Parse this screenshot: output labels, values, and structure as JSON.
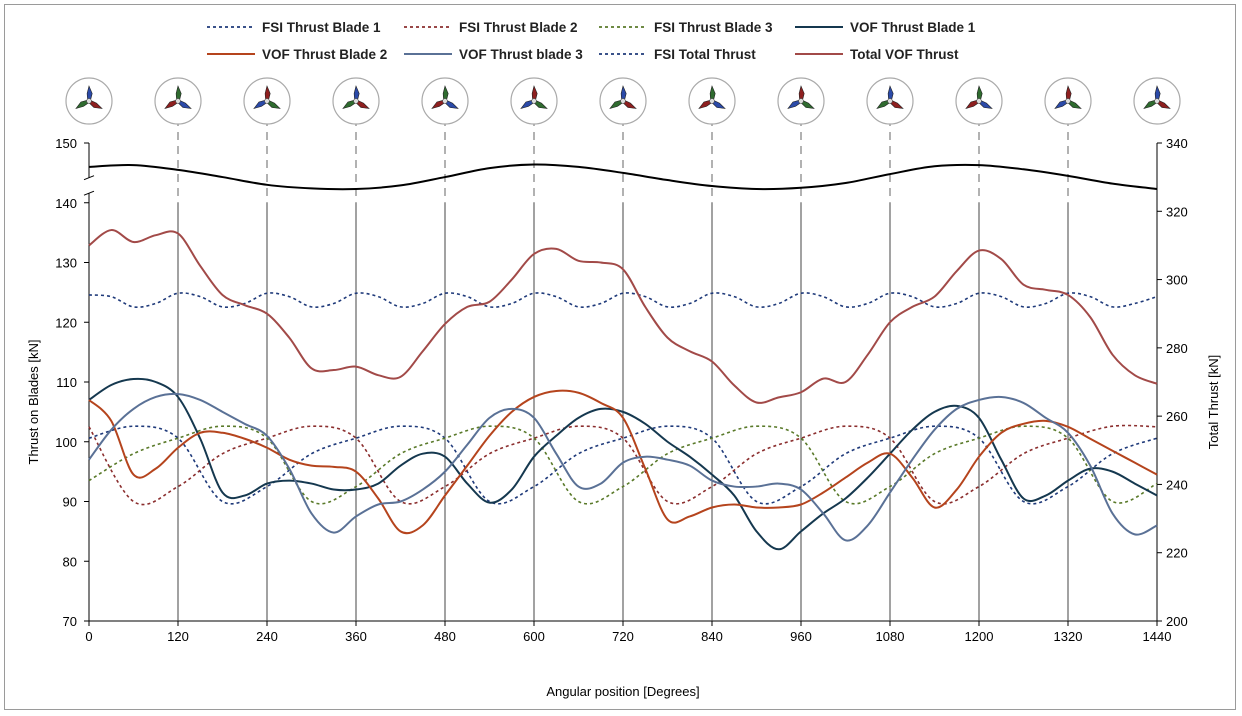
{
  "chart_data": {
    "type": "line",
    "xlabel": "Angular position [Degrees]",
    "ylabel": "Thrust on Blades [kN]",
    "y2label": "Total Thrust [kN]",
    "xlim": [
      0,
      1440
    ],
    "ylim": [
      70,
      150
    ],
    "y2lim": [
      200,
      340
    ],
    "x_ticks": [
      "0",
      "120",
      "240",
      "360",
      "480",
      "600",
      "720",
      "840",
      "960",
      "1080",
      "1200",
      "1320",
      "1440"
    ],
    "y_ticks": [
      "70",
      "80",
      "90",
      "100",
      "110",
      "120",
      "130",
      "140",
      "150"
    ],
    "y2_ticks": [
      "200",
      "220",
      "240",
      "260",
      "280",
      "300",
      "320",
      "340"
    ],
    "grid": "vertical lines every 120 degrees",
    "legend_position": "top",
    "axis_break": "between 140 and 150 on the left axis",
    "rotor_icon_angles": [
      0,
      120,
      240,
      360,
      480,
      600,
      720,
      840,
      960,
      1080,
      1200,
      1320,
      1440
    ],
    "series": [
      {
        "name": "FSI Thrust Blade 1",
        "axis": "left",
        "style": "dashed",
        "color": "#1f3a7a",
        "x": [
          0,
          60,
          120,
          180,
          240,
          300,
          360,
          420,
          480,
          540,
          600,
          660,
          720,
          780,
          840,
          900,
          960,
          1020,
          1080,
          1140,
          1200,
          1260,
          1320,
          1380,
          1440
        ],
        "y": [
          100.6,
          102.6,
          100.6,
          90.0,
          92.5,
          98.0,
          100.6,
          102.6,
          100.6,
          90.0,
          92.5,
          98.0,
          100.6,
          102.6,
          100.6,
          90.0,
          92.5,
          98.0,
          100.6,
          102.6,
          100.6,
          90.0,
          92.5,
          98.0,
          100.6
        ]
      },
      {
        "name": "FSI Thrust Blade 2",
        "axis": "left",
        "style": "dashed",
        "color": "#8b2e2e",
        "x": [
          0,
          60,
          120,
          180,
          240,
          300,
          360,
          420,
          480,
          540,
          600,
          660,
          720,
          780,
          840,
          900,
          960,
          1020,
          1080,
          1140,
          1200,
          1260,
          1320,
          1380,
          1440
        ],
        "y": [
          102.5,
          90.0,
          92.5,
          98.0,
          100.6,
          102.6,
          100.6,
          90.0,
          92.5,
          98.0,
          100.6,
          102.6,
          100.6,
          90.0,
          92.5,
          98.0,
          100.6,
          102.6,
          100.6,
          90.0,
          92.5,
          98.0,
          100.6,
          102.6,
          102.5
        ]
      },
      {
        "name": "FSI Thrust Blade 3",
        "axis": "left",
        "style": "dashed",
        "color": "#5a7a2a",
        "x": [
          0,
          60,
          120,
          180,
          240,
          300,
          360,
          420,
          480,
          540,
          600,
          660,
          720,
          780,
          840,
          900,
          960,
          1020,
          1080,
          1140,
          1200,
          1260,
          1320,
          1380,
          1440
        ],
        "y": [
          93.5,
          98.0,
          100.6,
          102.6,
          100.6,
          90.0,
          92.5,
          98.0,
          100.6,
          102.6,
          100.6,
          90.0,
          92.5,
          98.0,
          100.6,
          102.6,
          100.6,
          90.0,
          92.5,
          98.0,
          100.6,
          102.6,
          100.6,
          90.0,
          93.0
        ]
      },
      {
        "name": "VOF Thrust Blade 1",
        "axis": "left",
        "style": "solid",
        "color": "#15384f",
        "x": [
          0,
          30,
          60,
          90,
          120,
          150,
          180,
          210,
          240,
          270,
          300,
          330,
          360,
          390,
          420,
          450,
          480,
          510,
          540,
          570,
          600,
          630,
          660,
          690,
          720,
          750,
          780,
          810,
          840,
          870,
          900,
          930,
          960,
          990,
          1020,
          1050,
          1080,
          1110,
          1140,
          1170,
          1200,
          1230,
          1260,
          1290,
          1320,
          1350,
          1380,
          1410,
          1440
        ],
        "y": [
          107.0,
          109.5,
          110.5,
          110.0,
          107.5,
          100.5,
          91.5,
          91.0,
          93.0,
          93.5,
          93.0,
          92.0,
          92.0,
          93.0,
          96.0,
          98.0,
          97.5,
          93.0,
          89.8,
          92.0,
          97.5,
          101.0,
          104.0,
          105.5,
          105.0,
          103.0,
          100.0,
          97.5,
          94.5,
          91.0,
          85.0,
          82.0,
          85.0,
          88.0,
          90.5,
          94.0,
          98.0,
          102.0,
          105.0,
          106.0,
          104.0,
          97.0,
          90.5,
          91.0,
          93.5,
          95.5,
          95.0,
          93.0,
          91.0
        ]
      },
      {
        "name": "VOF Thrust Blade 2",
        "axis": "left",
        "style": "solid",
        "color": "#b5441d",
        "x": [
          0,
          30,
          60,
          90,
          120,
          150,
          180,
          210,
          240,
          270,
          300,
          330,
          360,
          390,
          420,
          450,
          480,
          510,
          540,
          570,
          600,
          630,
          660,
          690,
          720,
          750,
          780,
          810,
          840,
          870,
          900,
          930,
          960,
          990,
          1020,
          1050,
          1080,
          1110,
          1140,
          1170,
          1200,
          1230,
          1260,
          1290,
          1320,
          1350,
          1380,
          1410,
          1440
        ],
        "y": [
          107.0,
          103.5,
          94.5,
          95.5,
          99.0,
          101.5,
          101.5,
          100.5,
          99.0,
          97.0,
          96.0,
          95.8,
          95.0,
          90.5,
          85.0,
          86.0,
          91.0,
          96.0,
          101.0,
          105.0,
          107.5,
          108.5,
          108.2,
          106.5,
          104.0,
          95.5,
          87.0,
          87.5,
          89.0,
          89.5,
          89.0,
          89.0,
          89.5,
          91.5,
          94.0,
          96.5,
          98.0,
          94.0,
          89.0,
          92.0,
          97.5,
          101.5,
          103.0,
          103.5,
          102.5,
          100.5,
          98.5,
          96.5,
          94.5
        ]
      },
      {
        "name": "VOF Thrust blade 3",
        "axis": "left",
        "style": "solid",
        "color": "#5a7196",
        "x": [
          0,
          30,
          60,
          90,
          120,
          150,
          180,
          210,
          240,
          270,
          300,
          330,
          360,
          390,
          420,
          450,
          480,
          510,
          540,
          570,
          600,
          630,
          660,
          690,
          720,
          750,
          780,
          810,
          840,
          870,
          900,
          930,
          960,
          990,
          1020,
          1050,
          1080,
          1110,
          1140,
          1170,
          1200,
          1230,
          1260,
          1290,
          1320,
          1350,
          1380,
          1410,
          1440
        ],
        "y": [
          97.0,
          102.0,
          105.5,
          107.5,
          108.0,
          107.0,
          105.0,
          103.0,
          101.0,
          95.5,
          88.0,
          84.8,
          87.5,
          89.5,
          90.0,
          92.0,
          95.0,
          99.5,
          104.0,
          105.5,
          104.0,
          98.0,
          92.5,
          93.0,
          96.5,
          97.5,
          97.0,
          96.0,
          93.5,
          92.5,
          92.5,
          93.0,
          92.0,
          88.0,
          83.5,
          86.0,
          91.5,
          97.0,
          102.0,
          105.5,
          107.0,
          107.5,
          106.5,
          104.0,
          101.5,
          96.0,
          88.0,
          84.5,
          86.0
        ]
      },
      {
        "name": "FSI Total Thrust",
        "axis": "right",
        "style": "solid",
        "color": "#000000",
        "x": [
          0,
          60,
          120,
          180,
          240,
          300,
          360,
          420,
          480,
          540,
          600,
          660,
          720,
          780,
          840,
          900,
          960,
          1020,
          1080,
          1140,
          1200,
          1260,
          1320,
          1380,
          1440
        ],
        "y": [
          146.0,
          146.3,
          145.5,
          144.3,
          143.0,
          142.4,
          142.3,
          142.9,
          144.3,
          145.8,
          146.4,
          146.0,
          145.0,
          143.8,
          142.8,
          142.3,
          142.5,
          143.3,
          144.8,
          146.1,
          146.3,
          145.6,
          144.5,
          143.2,
          142.3
        ]
      },
      {
        "name": "FSI Total Thrust",
        "axis": "right",
        "style": "dashed",
        "color": "#1f3a7a",
        "x": [
          0,
          30,
          60,
          90,
          120,
          150,
          180,
          210,
          240,
          270,
          300,
          330,
          360,
          390,
          420,
          450,
          480,
          510,
          540,
          570,
          600,
          630,
          660,
          690,
          720,
          750,
          780,
          810,
          840,
          870,
          900,
          930,
          960,
          990,
          1020,
          1050,
          1080,
          1110,
          1140,
          1170,
          1200,
          1230,
          1260,
          1290,
          1320,
          1350,
          1380,
          1410,
          1440
        ],
        "y": [
          295.5,
          295.0,
          292.0,
          293.0,
          296.0,
          295.0,
          292.0,
          293.0,
          296.0,
          295.0,
          292.0,
          293.0,
          296.0,
          295.0,
          292.0,
          293.0,
          296.0,
          295.0,
          292.0,
          293.0,
          296.0,
          295.0,
          292.0,
          293.0,
          296.0,
          295.0,
          292.0,
          293.0,
          296.0,
          295.0,
          292.0,
          293.0,
          296.0,
          295.0,
          292.0,
          293.0,
          296.0,
          295.0,
          292.0,
          293.0,
          296.0,
          295.0,
          292.0,
          293.0,
          296.0,
          295.0,
          292.0,
          293.0,
          295.0
        ]
      },
      {
        "name": "Total VOF Thrust",
        "axis": "right",
        "style": "solid",
        "color": "#a24a48",
        "x": [
          0,
          30,
          60,
          90,
          120,
          150,
          180,
          210,
          240,
          270,
          300,
          330,
          360,
          390,
          420,
          450,
          480,
          510,
          540,
          570,
          600,
          630,
          660,
          690,
          720,
          750,
          780,
          810,
          840,
          870,
          900,
          930,
          960,
          990,
          1020,
          1050,
          1080,
          1110,
          1140,
          1170,
          1200,
          1230,
          1260,
          1290,
          1320,
          1350,
          1380,
          1410,
          1440
        ],
        "y": [
          310.0,
          314.5,
          311.0,
          313.0,
          313.5,
          304.0,
          295.5,
          292.5,
          290.0,
          283.0,
          274.0,
          273.5,
          274.5,
          272.0,
          271.5,
          279.0,
          287.0,
          292.0,
          293.5,
          300.0,
          307.5,
          309.0,
          305.5,
          305.0,
          303.0,
          292.0,
          283.0,
          279.0,
          276.0,
          269.0,
          264.0,
          265.5,
          267.0,
          271.0,
          270.0,
          278.0,
          287.5,
          292.0,
          295.0,
          302.5,
          308.5,
          306.0,
          298.5,
          297.0,
          295.5,
          289.0,
          278.0,
          272.0,
          269.5
        ]
      }
    ]
  }
}
